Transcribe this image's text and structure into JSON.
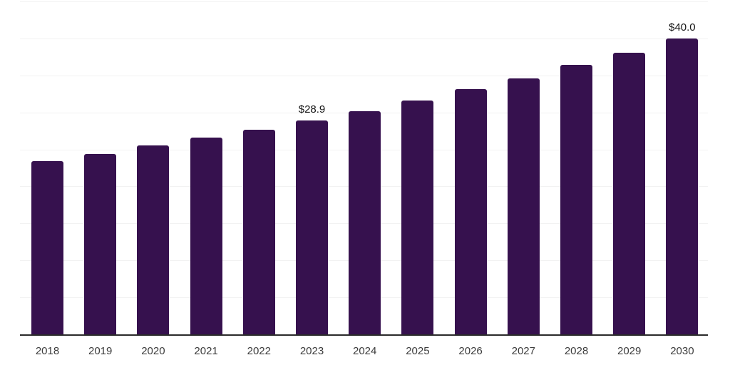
{
  "chart_data": {
    "type": "bar",
    "title": "",
    "xlabel": "",
    "ylabel": "",
    "categories": [
      "2018",
      "2019",
      "2020",
      "2021",
      "2022",
      "2023",
      "2024",
      "2025",
      "2026",
      "2027",
      "2028",
      "2029",
      "2030"
    ],
    "values": [
      23.4,
      24.4,
      25.5,
      26.6,
      27.7,
      28.9,
      30.2,
      31.6,
      33.1,
      34.6,
      36.4,
      38.1,
      40.0
    ],
    "data_labels": [
      "",
      "",
      "",
      "",
      "",
      "$28.9",
      "",
      "",
      "",
      "",
      "",
      "",
      "$40.0"
    ],
    "ylim": [
      0,
      45
    ],
    "gridline_step": 5,
    "grid": true,
    "legend": false,
    "y_tick_labels_visible": false,
    "colors": {
      "bar": "#36114e",
      "gridline": "#f2f2f2",
      "axis_line": "#2a2a2a",
      "tick_label": "#3c3c3c",
      "data_label": "#141414",
      "background": "#ffffff"
    }
  }
}
